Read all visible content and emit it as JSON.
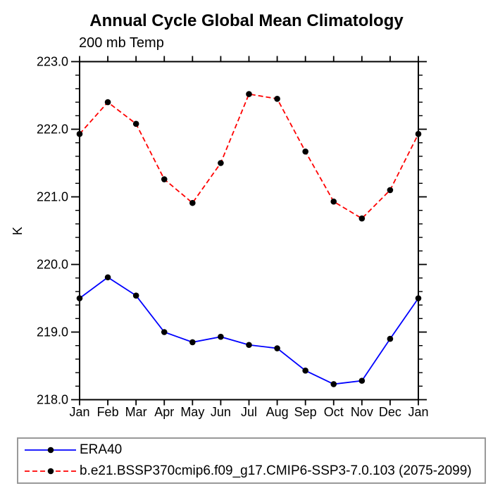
{
  "title": "Annual Cycle Global Mean Climatology",
  "subtitle": "200 mb Temp",
  "ylabel": "K",
  "colors": {
    "axis": "#000000",
    "marker": "#000000",
    "era40_line": "#0000ff",
    "model_line": "#ff0000",
    "legend_border": "#999999"
  },
  "legend": {
    "entries": [
      {
        "label": "ERA40",
        "color": "#0000ff",
        "style": "solid",
        "marker": "filled-circle"
      },
      {
        "label": "b.e21.BSSP370cmip6.f09_g17.CMIP6-SSP3-7.0.103 (2075-2099)",
        "color": "#ff0000",
        "style": "dashed",
        "marker": "filled-circle"
      }
    ]
  },
  "chart_data": {
    "type": "line",
    "title": "Annual Cycle Global Mean Climatology",
    "subtitle": "200 mb Temp",
    "xlabel": "",
    "ylabel": "K",
    "categories": [
      "Jan",
      "Feb",
      "Mar",
      "Apr",
      "May",
      "Jun",
      "Jul",
      "Aug",
      "Sep",
      "Oct",
      "Nov",
      "Dec",
      "Jan"
    ],
    "series": [
      {
        "name": "ERA40",
        "color": "#0000ff",
        "dash": "solid",
        "marker_color": "#000000",
        "values": [
          219.5,
          219.81,
          219.54,
          219.0,
          218.85,
          218.93,
          218.81,
          218.76,
          218.43,
          218.23,
          218.28,
          218.9,
          219.5
        ]
      },
      {
        "name": "b.e21.BSSP370cmip6.f09_g17.CMIP6-SSP3-7.0.103 (2075-2099)",
        "color": "#ff0000",
        "dash": "dashed",
        "marker_color": "#000000",
        "values": [
          221.93,
          222.4,
          222.08,
          221.26,
          220.91,
          221.5,
          222.52,
          222.45,
          221.67,
          220.93,
          220.68,
          221.1,
          221.93
        ]
      }
    ],
    "ylim": [
      218.0,
      223.0
    ],
    "ytick_major_interval": 1.0,
    "ytick_minor_interval": 0.2,
    "ytick_labels": [
      "218.0",
      "219.0",
      "220.0",
      "221.0",
      "222.0",
      "223.0"
    ],
    "grid": false,
    "tick_direction": "out",
    "legend_position": "bottom"
  }
}
